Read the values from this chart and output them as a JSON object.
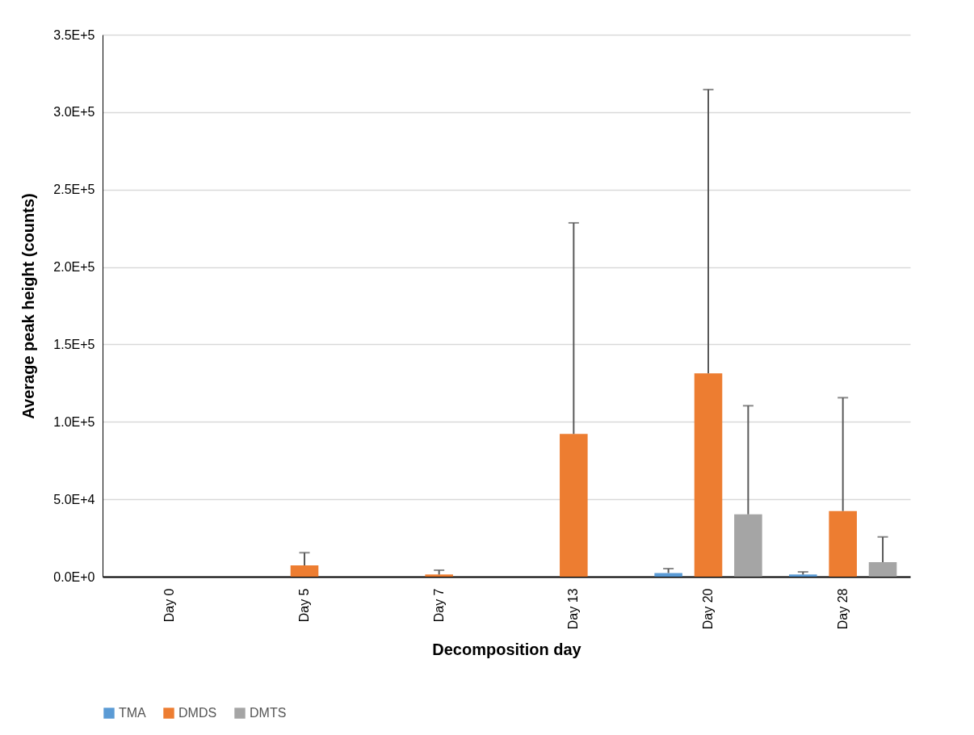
{
  "chart_data": {
    "type": "bar",
    "xlabel": "Decomposition day",
    "ylabel": "Average peak height (counts)",
    "categories": [
      "Day 0",
      "Day 5",
      "Day 7",
      "Day 13",
      "Day 20",
      "Day 28"
    ],
    "series": [
      {
        "name": "TMA",
        "color": "#5b9bd5",
        "values": [
          0,
          0,
          0,
          0,
          2400,
          1400
        ],
        "errors": [
          null,
          null,
          null,
          null,
          [
            2400,
            5200
          ],
          [
            1400,
            3100
          ]
        ]
      },
      {
        "name": "DMDS",
        "color": "#ed7d31",
        "values": [
          0,
          7300,
          1400,
          92200,
          131300,
          42400
        ],
        "errors": [
          null,
          [
            7300,
            15500
          ],
          [
            1400,
            4200
          ],
          [
            92200,
            228500
          ],
          [
            131300,
            314600
          ],
          [
            42400,
            115600
          ]
        ]
      },
      {
        "name": "DMTS",
        "color": "#a5a5a5",
        "values": [
          0,
          0,
          0,
          0,
          40300,
          9400
        ],
        "errors": [
          null,
          null,
          null,
          null,
          [
            40300,
            110400
          ],
          [
            9400,
            25700
          ]
        ]
      }
    ],
    "ylim": [
      0,
      350000
    ],
    "yticks": [
      {
        "value": 0,
        "label": "0.0E+0"
      },
      {
        "value": 50000,
        "label": "5.0E+4"
      },
      {
        "value": 100000,
        "label": "1.0E+5"
      },
      {
        "value": 150000,
        "label": "1.5E+5"
      },
      {
        "value": 200000,
        "label": "2.0E+5"
      },
      {
        "value": 250000,
        "label": "2.5E+5"
      },
      {
        "value": 300000,
        "label": "3.0E+5"
      },
      {
        "value": 350000,
        "label": "3.5E+5"
      }
    ],
    "grid": "y",
    "legend": "bottom"
  }
}
